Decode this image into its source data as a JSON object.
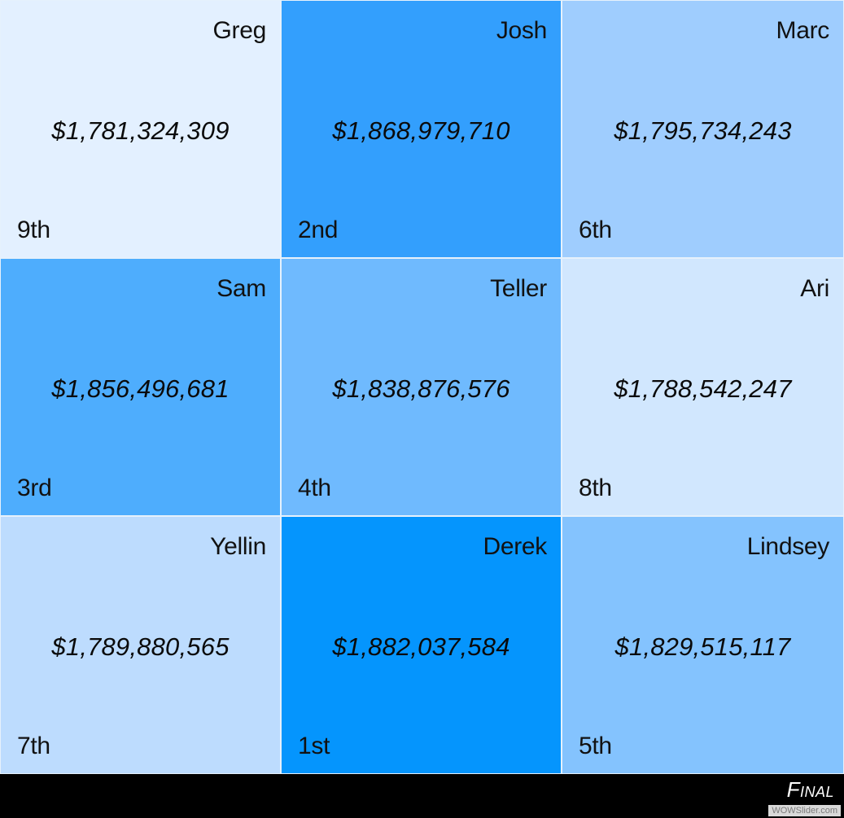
{
  "tiles": [
    {
      "name": "Greg",
      "amount": "$1,781,324,309",
      "rank": "9th",
      "color": "#e3f0ff"
    },
    {
      "name": "Josh",
      "amount": "$1,868,979,710",
      "rank": "2nd",
      "color": "#339ffd"
    },
    {
      "name": "Marc",
      "amount": "$1,795,734,243",
      "rank": "6th",
      "color": "#9fcdfe"
    },
    {
      "name": "Sam",
      "amount": "$1,856,496,681",
      "rank": "3rd",
      "color": "#4eadfd"
    },
    {
      "name": "Teller",
      "amount": "$1,838,876,576",
      "rank": "4th",
      "color": "#6fbafe"
    },
    {
      "name": "Ari",
      "amount": "$1,788,542,247",
      "rank": "8th",
      "color": "#d1e7fe"
    },
    {
      "name": "Yellin",
      "amount": "$1,789,880,565",
      "rank": "7th",
      "color": "#bddcfe"
    },
    {
      "name": "Derek",
      "amount": "$1,882,037,584",
      "rank": "1st",
      "color": "#0595fd"
    },
    {
      "name": "Lindsey",
      "amount": "$1,829,515,117",
      "rank": "5th",
      "color": "#84c3fe"
    }
  ],
  "footer": {
    "caption": "Final",
    "watermark": "WOWSlider.com"
  }
}
